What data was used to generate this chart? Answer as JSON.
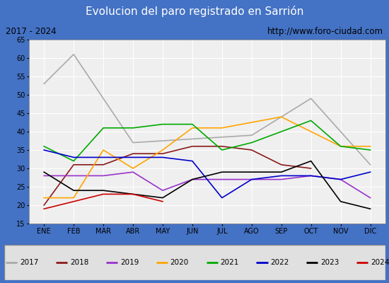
{
  "title": "Evolucion del paro registrado en Sarrión",
  "subtitle_left": "2017 - 2024",
  "subtitle_right": "http://www.foro-ciudad.com",
  "months": [
    "ENE",
    "FEB",
    "MAR",
    "ABR",
    "MAY",
    "JUN",
    "JUL",
    "AGO",
    "SEP",
    "OCT",
    "NOV",
    "DIC"
  ],
  "ylim": [
    15,
    65
  ],
  "yticks": [
    15,
    20,
    25,
    30,
    35,
    40,
    45,
    50,
    55,
    60,
    65
  ],
  "series": {
    "2017": {
      "color": "#aaaaaa",
      "values": [
        53,
        61,
        null,
        37,
        null,
        null,
        null,
        39,
        null,
        49,
        null,
        31
      ]
    },
    "2018": {
      "color": "#8b1a1a",
      "values": [
        20,
        31,
        31,
        34,
        34,
        36,
        36,
        35,
        31,
        30,
        null,
        null
      ]
    },
    "2019": {
      "color": "#9932cc",
      "values": [
        28,
        28,
        28,
        29,
        24,
        27,
        27,
        27,
        27,
        28,
        27,
        22
      ]
    },
    "2020": {
      "color": "#ffa500",
      "values": [
        22,
        22,
        35,
        30,
        35,
        41,
        41,
        null,
        44,
        40,
        36,
        36
      ]
    },
    "2021": {
      "color": "#00aa00",
      "values": [
        36,
        32,
        41,
        41,
        42,
        42,
        35,
        37,
        null,
        43,
        36,
        35
      ]
    },
    "2022": {
      "color": "#0000cc",
      "values": [
        35,
        33,
        33,
        33,
        33,
        32,
        22,
        27,
        28,
        28,
        27,
        29
      ]
    },
    "2023": {
      "color": "#000000",
      "values": [
        29,
        24,
        24,
        23,
        22,
        27,
        29,
        29,
        29,
        32,
        21,
        19
      ]
    },
    "2024": {
      "color": "#cc0000",
      "values": [
        19,
        21,
        23,
        23,
        21,
        null,
        null,
        null,
        null,
        null,
        null,
        null
      ]
    }
  },
  "title_bg_color": "#4472c4",
  "title_font_color": "#ffffff",
  "subtitle_bg_color": "#e0e0e0",
  "plot_bg_color": "#efefef",
  "legend_bg_color": "#e0e0e0",
  "grid_color": "#ffffff",
  "outer_bg_color": "#4472c4"
}
